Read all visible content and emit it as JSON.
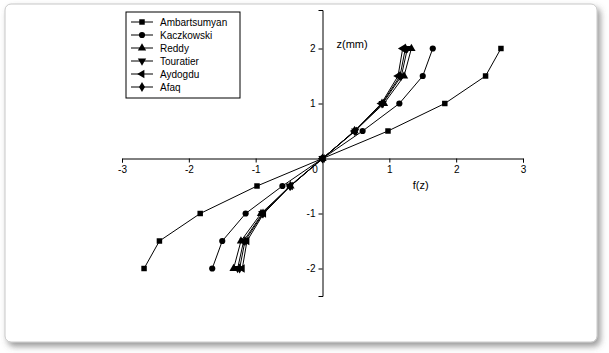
{
  "chart_data": {
    "type": "line",
    "x_label": "f(z)",
    "y_label": "z(mm)",
    "xlim": [
      -3,
      3
    ],
    "ylim": [
      -2.5,
      2.7
    ],
    "xticks": [
      -3,
      -2,
      -1,
      0,
      1,
      2,
      3
    ],
    "yticks": [
      -2,
      -1,
      1,
      2
    ],
    "grid": false,
    "legend": "top-left",
    "series": [
      {
        "name": "Ambartsumyan",
        "color": "#000000",
        "marker": "square",
        "line_style": "solid",
        "x": [
          -2.67,
          -2.44,
          -1.83,
          -0.98,
          0,
          0.98,
          1.83,
          2.44,
          2.67
        ],
        "values": [
          -2,
          -1.5,
          -1,
          -0.5,
          0,
          0.5,
          1,
          1.5,
          2
        ]
      },
      {
        "name": "Kaczkowski",
        "color": "#000000",
        "marker": "circle",
        "line_style": "solid",
        "x": [
          -1.65,
          -1.5,
          -1.15,
          -0.6,
          0,
          0.6,
          1.15,
          1.5,
          1.65
        ],
        "values": [
          -2,
          -1.5,
          -1,
          -0.5,
          0,
          0.5,
          1,
          1.5,
          2
        ]
      },
      {
        "name": "Reddy",
        "color": "#000000",
        "marker": "triangle-up",
        "line_style": "solid",
        "x": [
          -1.33,
          -1.22,
          -0.92,
          -0.48,
          0,
          0.48,
          0.92,
          1.22,
          1.33
        ],
        "values": [
          -2,
          -1.5,
          -1,
          -0.5,
          0,
          0.5,
          1,
          1.5,
          2
        ]
      },
      {
        "name": "Touratier",
        "color": "#000000",
        "marker": "triangle-down",
        "line_style": "solid",
        "x": [
          -1.27,
          -1.18,
          -0.9,
          -0.49,
          0,
          0.49,
          0.9,
          1.18,
          1.27
        ],
        "values": [
          -2,
          -1.5,
          -1,
          -0.5,
          0,
          0.5,
          1,
          1.5,
          2
        ]
      },
      {
        "name": "Aydogdu",
        "color": "#000000",
        "marker": "triangle-left",
        "line_style": "solid",
        "x": [
          -1.2,
          -1.13,
          -0.88,
          -0.48,
          0,
          0.48,
          0.88,
          1.13,
          1.2
        ],
        "values": [
          -2,
          -1.5,
          -1,
          -0.5,
          0,
          0.5,
          1,
          1.5,
          2
        ]
      },
      {
        "name": "Afaq",
        "color": "#000000",
        "marker": "diamond",
        "line_style": "solid",
        "x": [
          -1.24,
          -1.16,
          -0.89,
          -0.48,
          0,
          0.48,
          0.89,
          1.16,
          1.24
        ],
        "values": [
          -2,
          -1.5,
          -1,
          -0.5,
          0,
          0.5,
          1,
          1.5,
          2
        ]
      }
    ]
  }
}
